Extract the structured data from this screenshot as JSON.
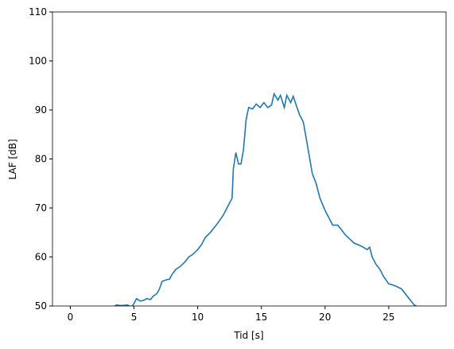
{
  "chart_data": {
    "type": "line",
    "x_label": "Tid [s]",
    "y_label": "LAF [dB]",
    "x": [
      3.4,
      3.6,
      4.0,
      4.5,
      4.8,
      5.0,
      5.2,
      5.5,
      5.8,
      6.0,
      6.3,
      6.5,
      6.8,
      7.0,
      7.2,
      7.5,
      7.8,
      8.0,
      8.3,
      8.6,
      9.0,
      9.3,
      9.6,
      10.0,
      10.3,
      10.6,
      11.0,
      11.3,
      11.6,
      12.0,
      12.3,
      12.5,
      12.7,
      12.8,
      13.0,
      13.2,
      13.4,
      13.6,
      13.8,
      14.0,
      14.3,
      14.6,
      14.9,
      15.2,
      15.5,
      15.8,
      16.0,
      16.3,
      16.5,
      16.8,
      17.0,
      17.3,
      17.5,
      17.8,
      18.0,
      18.3,
      18.6,
      19.0,
      19.3,
      19.6,
      20.0,
      20.3,
      20.6,
      21.0,
      21.3,
      21.6,
      22.0,
      22.3,
      22.6,
      23.0,
      23.3,
      23.5,
      23.7,
      24.0,
      24.3,
      24.6,
      25.0,
      25.3,
      25.6,
      26.0,
      26.3,
      26.6,
      27.0,
      27.3
    ],
    "series": [
      {
        "color": "#1f77b4",
        "values": [
          49.8,
          50.2,
          50.1,
          50.2,
          49.8,
          50.5,
          51.5,
          51.0,
          51.2,
          51.5,
          51.3,
          52.0,
          52.5,
          53.5,
          55.0,
          55.3,
          55.5,
          56.5,
          57.5,
          58.0,
          59.0,
          60.0,
          60.5,
          61.5,
          62.5,
          64.0,
          65.0,
          66.0,
          67.0,
          68.5,
          70.0,
          71.0,
          72.0,
          78.0,
          81.3,
          79.0,
          79.0,
          82.0,
          88.0,
          90.5,
          90.2,
          91.2,
          90.5,
          91.5,
          90.5,
          91.0,
          93.3,
          92.0,
          93.0,
          90.5,
          93.0,
          91.5,
          92.8,
          90.5,
          89.0,
          87.5,
          83.0,
          77.0,
          75.0,
          72.0,
          69.5,
          68.0,
          66.5,
          66.5,
          65.5,
          64.5,
          63.5,
          62.8,
          62.5,
          62.0,
          61.5,
          62.0,
          60.0,
          58.5,
          57.5,
          56.0,
          54.5,
          54.3,
          54.0,
          53.5,
          52.5,
          51.5,
          50.2,
          49.8
        ]
      }
    ],
    "xlim": [
      -1.4,
      29.5
    ],
    "ylim": [
      50,
      110
    ],
    "xticks": [
      0,
      5,
      10,
      15,
      20,
      25
    ],
    "yticks": [
      50,
      60,
      70,
      80,
      90,
      100,
      110
    ]
  }
}
